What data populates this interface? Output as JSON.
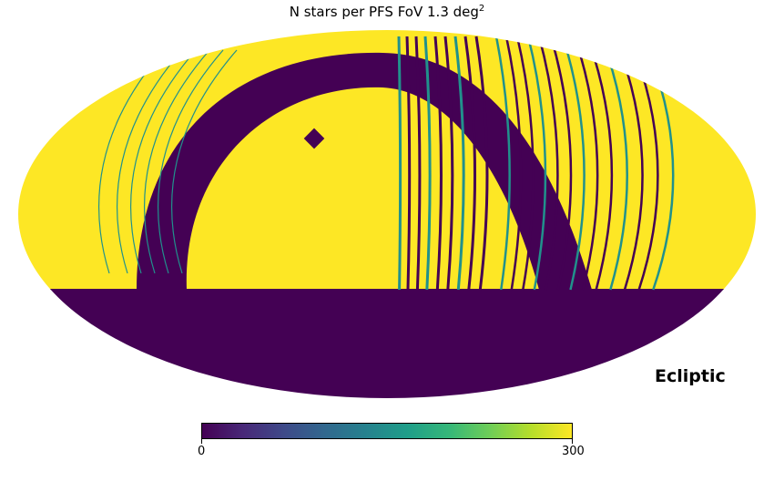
{
  "title": {
    "main": "N stars per PFS FoV 1.3 deg",
    "superscript": "2"
  },
  "map": {
    "projection": "mollweide",
    "coordinate_system_label": "Ecliptic",
    "colormap": "viridis",
    "fill_color": "#fde725",
    "empty_color": "#440154",
    "mid_color": "#21918c"
  },
  "colorbar": {
    "min_label": "0",
    "max_label": "300",
    "vmin": 0,
    "vmax": 300,
    "stops": [
      "#440154",
      "#482878",
      "#3e4a89",
      "#31688e",
      "#26828e",
      "#1f9e89",
      "#35b779",
      "#6ece58",
      "#b5de2b",
      "#fde725"
    ]
  }
}
